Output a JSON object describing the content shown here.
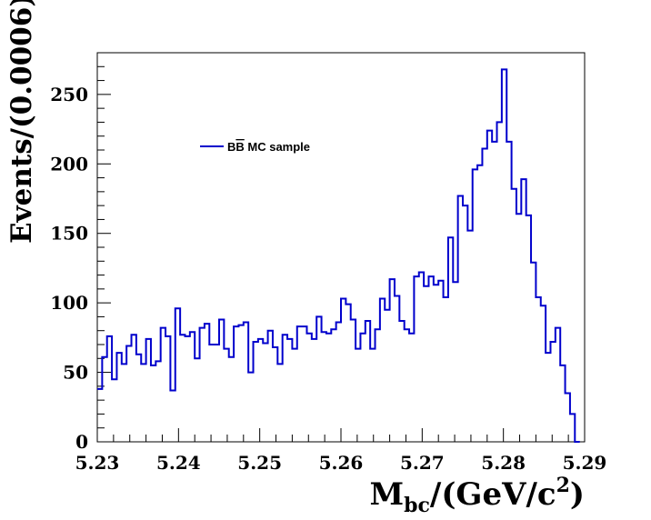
{
  "chart_data": {
    "type": "line",
    "step": true,
    "xlabel_main": "M",
    "xlabel_sub": "bc",
    "xlabel_rest": "/(GeV/c",
    "xlabel_sup": "2",
    "xlabel_close": ")",
    "ylabel": "Events/(0.0006)",
    "xlim": [
      5.23,
      5.29
    ],
    "ylim": [
      0,
      280
    ],
    "x_ticks": [
      "5.23",
      "5.24",
      "5.25",
      "5.26",
      "5.27",
      "5.28",
      "5.29"
    ],
    "y_ticks": [
      "0",
      "50",
      "100",
      "150",
      "200",
      "250"
    ],
    "legend": {
      "position": "top-left",
      "prefix": "B",
      "overlined": "B",
      "suffix": " MC sample"
    },
    "color": "#0000cc",
    "series": [
      {
        "bin_start": 5.23,
        "bin_width": 0.0006,
        "values": [
          38,
          61,
          76,
          45,
          64,
          56,
          69,
          77,
          63,
          56,
          74,
          55,
          58,
          82,
          76,
          37,
          96,
          77,
          76,
          79,
          60,
          82,
          85,
          70,
          70,
          88,
          67,
          61,
          83,
          84,
          86,
          50,
          72,
          74,
          71,
          80,
          68,
          56,
          77,
          74,
          67,
          83,
          83,
          78,
          74,
          90,
          79,
          78,
          81,
          86,
          103,
          99,
          88,
          67,
          78,
          87,
          67,
          81,
          103,
          95,
          117,
          105,
          87,
          81,
          78,
          119,
          122,
          112,
          119,
          113,
          116,
          104,
          147,
          115,
          177,
          170,
          152,
          196,
          199,
          211,
          224,
          216,
          230,
          268,
          216,
          182,
          164,
          189,
          163,
          129,
          104,
          98,
          64,
          72,
          82,
          55,
          35,
          20,
          0
        ]
      }
    ]
  }
}
